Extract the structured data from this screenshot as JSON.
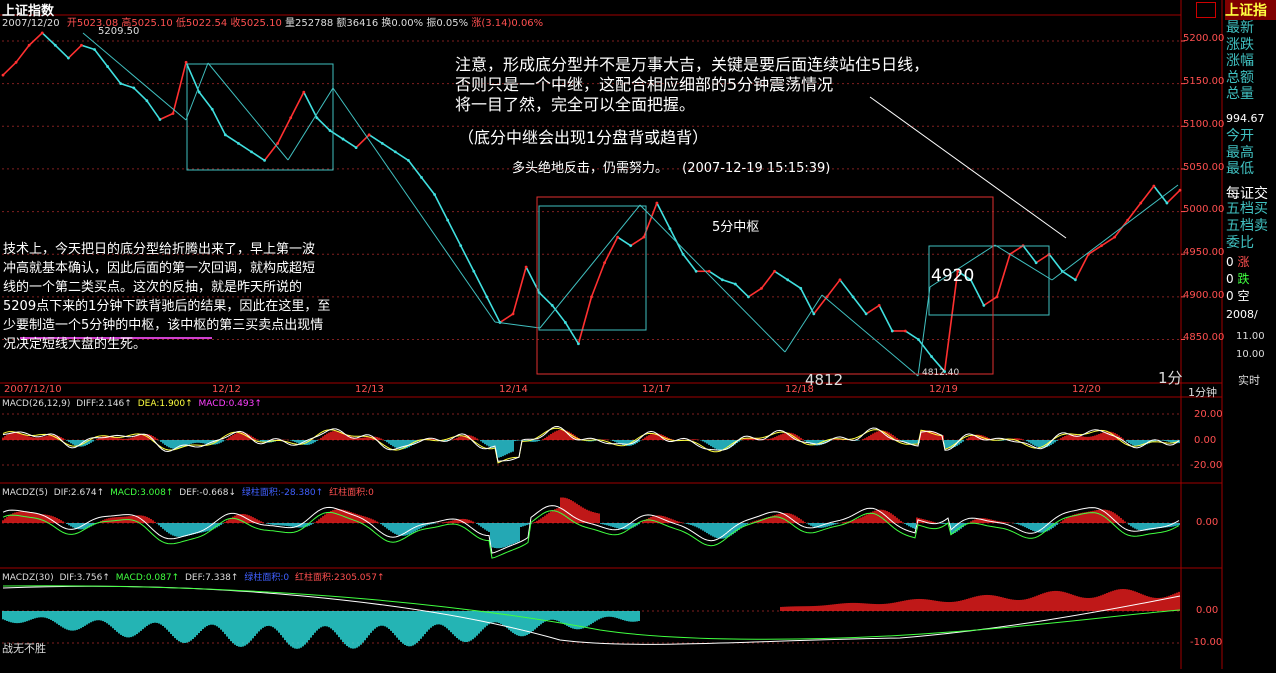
{
  "title": "上证指数",
  "header": {
    "date": "2007/12/20",
    "open_label": "开",
    "open": "5023.08",
    "high_label": "高",
    "high": "5025.10",
    "low_label": "低",
    "low": "5022.54",
    "close_label": "收",
    "close": "5025.10",
    "vol_label": "量",
    "vol": "252788",
    "amt_label": "额",
    "amt": "36416",
    "turnover_label": "换",
    "turnover": "0.00%",
    "amp_label": "振",
    "amp": "0.05%",
    "chg_label": "涨",
    "chg": "(3.14)0.06%"
  },
  "price_axis": {
    "ticks": [
      "5200.00",
      "5150.00",
      "5100.00",
      "5050.00",
      "5000.00",
      "4950.00",
      "4900.00",
      "4850.00"
    ]
  },
  "price_marks": {
    "peak": "5209.50",
    "low": "4812.40",
    "low_big": "4812",
    "mid": "4920"
  },
  "time_axis": {
    "start": "2007/12/10",
    "labels": [
      "12/12",
      "12/13",
      "12/14",
      "12/17",
      "12/18",
      "12/19",
      "12/20"
    ],
    "period": "1分钟",
    "period_short": "1分"
  },
  "annotations": {
    "note_lines": [
      "注意，形成底分型并不是万事大吉，关键是要后面连续站住5日线，",
      "否则只是一个中继，这配合相应细部的5分钟震荡情况",
      "将一目了然，完全可以全面把握。"
    ],
    "note_sub": "（底分中继会出现1分盘背或趋背）",
    "fight": "多头绝地反击，仍需努力。",
    "fight_time": "(2007-12-19 15:15:39)",
    "zhongshu": "5分中枢",
    "analysis_lines": [
      "技术上，今天把日的底分型给折腾出来了，早上第一波",
      "冲高就基本确认，因此后面的第一次回调，就构成超短",
      "线的一个第二类买点。这次的反抽，就是昨天所说的",
      "5209点下来的1分钟下跌背驰后的结果，因此在这里，至",
      "少要制造一个5分钟的中枢，该中枢的第三买卖点出现情",
      "况决定短线大盘的生死。"
    ],
    "corner_text": "战无不胜"
  },
  "macd": {
    "title": "MACD(26,12,9)",
    "diff_label": "DIFF:",
    "diff": "2.146",
    "dea_label": "DEA:",
    "dea": "1.900",
    "macd_label": "MACD:",
    "macd": "0.493",
    "ticks": [
      "20.00",
      "0.00",
      "-20.00"
    ]
  },
  "macdz5": {
    "title": "MACDZ(5)",
    "dif_label": "DIF:",
    "dif": "2.674",
    "macd_label": "MACD:",
    "macd": "3.008",
    "def_label": "DEF:",
    "def": "-0.668",
    "green_label": "绿柱面积:",
    "green": "-28.380",
    "red_label": "红柱面积:",
    "red": "0",
    "ticks": [
      "0.00"
    ]
  },
  "macdz30": {
    "title": "MACDZ(30)",
    "dif_label": "DIF:",
    "dif": "3.756",
    "macd_label": "MACD:",
    "macd": "0.087",
    "def_label": "DEF:",
    "def": "7.338",
    "green_label": "绿柱面积:",
    "green": "0",
    "red_label": "红柱面积:",
    "red": "2305.057",
    "ticks": [
      "0.00",
      "-10.00"
    ]
  },
  "sidebar": {
    "title": "上证指",
    "items": [
      "最新",
      "涨跌",
      "涨幅",
      "总额",
      "总量"
    ],
    "value": "994.67",
    "items2": [
      "今开",
      "最高",
      "最低"
    ],
    "header2": "每证交",
    "items3": [
      "五档买",
      "五档卖",
      "委比"
    ],
    "updown": [
      [
        "涨",
        "0"
      ],
      [
        "跌",
        "0"
      ],
      [
        "空",
        "0"
      ]
    ],
    "date": "2008/",
    "times": [
      "11.00",
      "10.00"
    ],
    "realtime": "实时"
  },
  "chart_data": {
    "type": "line",
    "symbol": "上证指数",
    "timeframe": "1分钟",
    "x_labels": [
      "2007/12/10",
      "12/12",
      "12/13",
      "12/14",
      "12/17",
      "12/18",
      "12/19",
      "12/20"
    ],
    "ylim": [
      4812,
      5220
    ],
    "series": [
      {
        "values": [
          5160,
          5175,
          5195,
          5209.5,
          5195,
          5180,
          5195,
          5190,
          5170,
          5150,
          5145,
          5130,
          5108,
          5115,
          5175,
          5140,
          5120,
          5090,
          5080,
          5070,
          5060,
          5080,
          5110,
          5140,
          5110,
          5095,
          5085,
          5075,
          5090,
          5080,
          5070,
          5060,
          5040,
          5020,
          4990,
          4960,
          4930,
          4900,
          4870,
          4880,
          4935,
          4905,
          4890,
          4870,
          4845,
          4900,
          4940,
          4970,
          4960,
          4970,
          5010,
          4980,
          4950,
          4930,
          4930,
          4920,
          4915,
          4900,
          4910,
          4930,
          4920,
          4910,
          4880,
          4900,
          4920,
          4900,
          4880,
          4890,
          4860,
          4860,
          4850,
          4830,
          4812.4,
          4930,
          4920,
          4890,
          4900,
          4950,
          4960,
          4940,
          4950,
          4930,
          4920,
          4950,
          4960,
          4970,
          4990,
          5010,
          5030,
          5010,
          5025.1
        ]
      }
    ]
  }
}
